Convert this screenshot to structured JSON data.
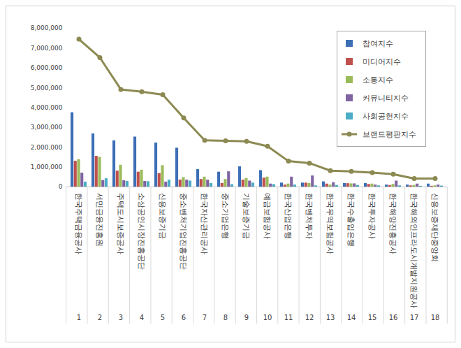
{
  "chart_data": {
    "type": "bar",
    "categories": [
      "한국주택금융공사",
      "서민금융진흥원",
      "주택도시보증공사",
      "소상공인시장진흥공단",
      "신용보증기금",
      "중소벤처기업진흥공단",
      "한국자산관리공사",
      "중소기업은행",
      "기술보증기금",
      "예금보험공사",
      "한국산업은행",
      "한국벤처투자",
      "한국무역보험공사",
      "한국수출입은행",
      "한국투자공사",
      "한국해양진흥공사",
      "한국해외인프라도시개발지원공사",
      "신용보증재단중앙회"
    ],
    "ranks": [
      1,
      2,
      3,
      4,
      5,
      6,
      7,
      8,
      9,
      10,
      11,
      12,
      13,
      14,
      15,
      16,
      17,
      18
    ],
    "series": [
      {
        "name": "참여지수",
        "color": "#3c6fb6",
        "values": [
          3750000,
          2680000,
          2330000,
          2520000,
          2220000,
          1960000,
          880000,
          750000,
          1020000,
          830000,
          200000,
          200000,
          260000,
          180000,
          180000,
          100000,
          100000,
          150000
        ]
      },
      {
        "name": "미디어지수",
        "color": "#c0504d",
        "values": [
          1300000,
          1550000,
          800000,
          750000,
          680000,
          350000,
          380000,
          180000,
          350000,
          450000,
          100000,
          200000,
          150000,
          170000,
          130000,
          80000,
          60000,
          40000
        ]
      },
      {
        "name": "소통지수",
        "color": "#9bbb59",
        "values": [
          1380000,
          1500000,
          1100000,
          850000,
          1080000,
          480000,
          500000,
          380000,
          430000,
          500000,
          150000,
          180000,
          100000,
          160000,
          150000,
          130000,
          80000,
          60000
        ]
      },
      {
        "name": "커뮤니티지수",
        "color": "#8064a2",
        "values": [
          700000,
          330000,
          320000,
          280000,
          250000,
          350000,
          350000,
          770000,
          300000,
          150000,
          500000,
          560000,
          220000,
          160000,
          100000,
          300000,
          150000,
          100000
        ]
      },
      {
        "name": "사회공헌지수",
        "color": "#4bacc6",
        "values": [
          250000,
          420000,
          280000,
          270000,
          350000,
          300000,
          180000,
          120000,
          200000,
          120000,
          100000,
          60000,
          80000,
          80000,
          60000,
          60000,
          40000,
          50000
        ]
      },
      {
        "name": "브랜드평판지수",
        "color": "#8c8a52",
        "type": "line",
        "marker": "circle",
        "values": [
          7450000,
          6520000,
          4920000,
          4800000,
          4650000,
          3480000,
          2350000,
          2330000,
          2300000,
          2050000,
          1300000,
          1200000,
          820000,
          780000,
          720000,
          640000,
          420000,
          420000
        ]
      }
    ],
    "ylim": [
      0,
      8000000
    ],
    "yticks": [
      0,
      {
        "value": 1000000,
        "label": "1,000,000"
      },
      {
        "value": 2000000,
        "label": "2,000,000"
      },
      {
        "value": 3000000,
        "label": "3,000,000"
      },
      {
        "value": 4000000,
        "label": "4,000,000"
      },
      {
        "value": 5000000,
        "label": "5,000,000"
      },
      {
        "value": 6000000,
        "label": "6,000,000"
      },
      {
        "value": 7000000,
        "label": "7,000,000"
      },
      {
        "value": 8000000,
        "label": "8,000,000"
      }
    ],
    "grid": false,
    "legend": "top-right"
  }
}
